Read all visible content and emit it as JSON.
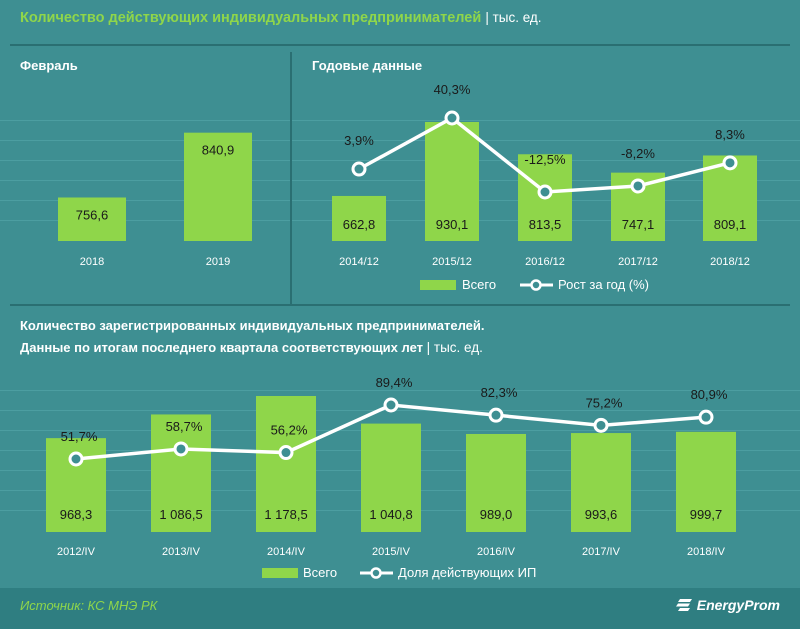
{
  "header": {
    "title": "Количество действующих индивидуальных предпринимателей",
    "unit": "| тыс. ед."
  },
  "colors": {
    "background": "#3e8f92",
    "bar": "#8fd64a",
    "line": "#ffffff",
    "accent": "#8fd64a"
  },
  "chart_data": [
    {
      "type": "bar",
      "title": "Февраль",
      "categories": [
        "2018",
        "2019"
      ],
      "values": [
        756.6,
        840.9
      ],
      "value_labels": [
        "756,6",
        "840,9"
      ],
      "ylim": [
        700,
        860
      ]
    },
    {
      "type": "bar",
      "title": "Годовые данные",
      "categories": [
        "2014/12",
        "2015/12",
        "2016/12",
        "2017/12",
        "2018/12"
      ],
      "series": [
        {
          "name": "Всего",
          "values": [
            662.8,
            930.1,
            813.5,
            747.1,
            809.1
          ],
          "labels": [
            "662,8",
            "930,1",
            "813,5",
            "747,1",
            "809,1"
          ]
        },
        {
          "name": "Рост за год (%)",
          "values": [
            3.9,
            40.3,
            -12.5,
            -8.2,
            8.3
          ],
          "labels": [
            "3,9%",
            "40,3%",
            "-12,5%",
            "-8,2%",
            "8,3%"
          ]
        }
      ],
      "legend": [
        "Всего",
        "Рост за год (%)"
      ]
    },
    {
      "type": "bar",
      "title": "Количество  зарегистрированных  индивидуальных  предпринимателей.",
      "subtitle": "Данные  по итогам последнего квартала  соответствующих  лет",
      "unit": "| тыс. ед.",
      "categories": [
        "2012/IV",
        "2013/IV",
        "2014/IV",
        "2015/IV",
        "2016/IV",
        "2017/IV",
        "2018/IV"
      ],
      "series": [
        {
          "name": "Всего",
          "values": [
            968.3,
            1086.5,
            1178.5,
            1040.8,
            989.0,
            993.6,
            999.7
          ],
          "labels": [
            "968,3",
            "1 086,5",
            "1 178,5",
            "1 040,8",
            "989,0",
            "993,6",
            "999,7"
          ]
        },
        {
          "name": "Доля действующих ИП",
          "values": [
            51.7,
            58.7,
            56.2,
            89.4,
            82.3,
            75.2,
            80.9
          ],
          "labels": [
            "51,7%",
            "58,7%",
            "56,2%",
            "89,4%",
            "82,3%",
            "75,2%",
            "80,9%"
          ]
        }
      ],
      "legend": [
        "Всего",
        "Доля действующих ИП"
      ]
    }
  ],
  "footer": {
    "source": "Источник: КС МНЭ РК",
    "logo": "EnergyProm"
  }
}
